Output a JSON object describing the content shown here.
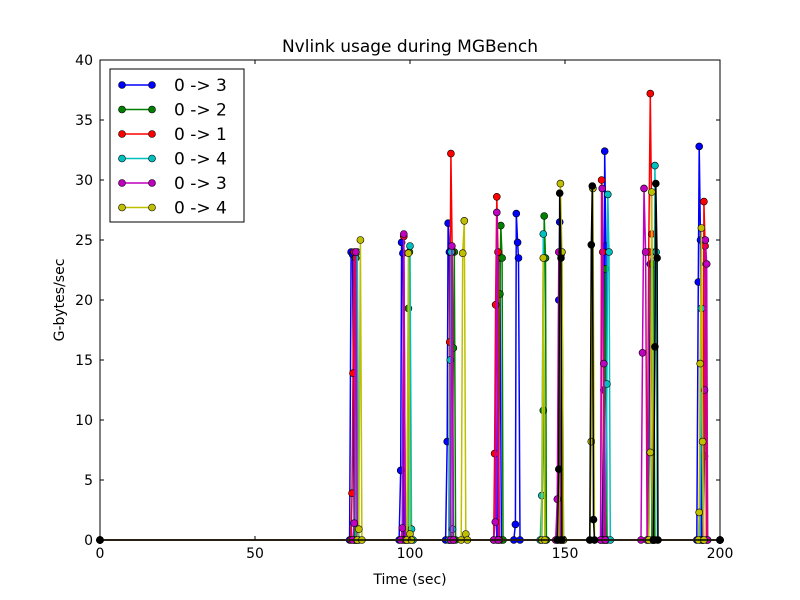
{
  "chart_data": {
    "type": "line",
    "title": "Nvlink usage during MGBench",
    "xlabel": "Time (sec)",
    "ylabel": "G-bytes/sec",
    "xlim": [
      0,
      200
    ],
    "ylim": [
      0,
      40
    ],
    "xticks": [
      0,
      50,
      100,
      150,
      200
    ],
    "yticks": [
      0,
      5,
      10,
      15,
      20,
      25,
      30,
      35,
      40
    ],
    "legend_position": "top-left",
    "series": [
      {
        "name": "0 -> 3",
        "color": "#0000ff",
        "points": [
          [
            0,
            0
          ],
          [
            80.5,
            0
          ],
          [
            81,
            24
          ],
          [
            81.5,
            23.8
          ],
          [
            82,
            0
          ],
          [
            96.5,
            0
          ],
          [
            97,
            5.8
          ],
          [
            97.3,
            24.8
          ],
          [
            97.7,
            23.9
          ],
          [
            98,
            0
          ],
          [
            111.5,
            0
          ],
          [
            112,
            8.2
          ],
          [
            112.3,
            26.4
          ],
          [
            112.7,
            24
          ],
          [
            113,
            0
          ],
          [
            128,
            0
          ],
          [
            128.5,
            24
          ],
          [
            129,
            23.5
          ],
          [
            129.5,
            0
          ],
          [
            133.5,
            0
          ],
          [
            134,
            1.3
          ],
          [
            134.3,
            27.2
          ],
          [
            134.7,
            24.8
          ],
          [
            135,
            23.5
          ],
          [
            135.5,
            0
          ],
          [
            147.5,
            0
          ],
          [
            148,
            20
          ],
          [
            148.3,
            26.5
          ],
          [
            148.7,
            23.8
          ],
          [
            149,
            0
          ],
          [
            162,
            0
          ],
          [
            162.5,
            12.5
          ],
          [
            162.8,
            32.4
          ],
          [
            163.2,
            24.5
          ],
          [
            163.5,
            0
          ],
          [
            177,
            0
          ],
          [
            177.5,
            23
          ],
          [
            178,
            24
          ],
          [
            178.5,
            0
          ],
          [
            192.5,
            0
          ],
          [
            193,
            21.5
          ],
          [
            193.3,
            32.8
          ],
          [
            193.7,
            25
          ],
          [
            194,
            0
          ],
          [
            200,
            0
          ]
        ]
      },
      {
        "name": "0 -> 2",
        "color": "#008000",
        "points": [
          [
            0,
            0
          ],
          [
            82,
            0
          ],
          [
            82.5,
            23.5
          ],
          [
            83,
            0
          ],
          [
            99,
            0
          ],
          [
            99.5,
            19.3
          ],
          [
            99.8,
            24
          ],
          [
            100.2,
            0
          ],
          [
            113.5,
            0
          ],
          [
            114,
            16
          ],
          [
            114.3,
            24
          ],
          [
            114.7,
            0
          ],
          [
            128.5,
            0
          ],
          [
            129,
            20.5
          ],
          [
            129.3,
            26.2
          ],
          [
            129.7,
            23.5
          ],
          [
            130,
            0
          ],
          [
            142.5,
            0
          ],
          [
            143,
            10.8
          ],
          [
            143.3,
            27
          ],
          [
            143.7,
            23.5
          ],
          [
            144,
            0
          ],
          [
            148.5,
            0
          ],
          [
            149,
            24
          ],
          [
            149.5,
            0
          ],
          [
            162.5,
            0
          ],
          [
            163,
            22.6
          ],
          [
            163.5,
            0
          ],
          [
            178,
            0
          ],
          [
            178.5,
            23
          ],
          [
            179,
            0
          ],
          [
            194.5,
            0
          ],
          [
            195,
            7
          ],
          [
            195.5,
            23
          ],
          [
            196,
            0
          ],
          [
            200,
            0
          ]
        ]
      },
      {
        "name": "0 -> 1",
        "color": "#ff0000",
        "points": [
          [
            0,
            0
          ],
          [
            81,
            0
          ],
          [
            81.3,
            3.9
          ],
          [
            81.6,
            13.9
          ],
          [
            82,
            24
          ],
          [
            82.5,
            0
          ],
          [
            97.5,
            0
          ],
          [
            98,
            25.3
          ],
          [
            98.5,
            0
          ],
          [
            112.5,
            0
          ],
          [
            112.8,
            16.5
          ],
          [
            113.2,
            32.2
          ],
          [
            113.6,
            24
          ],
          [
            114,
            0
          ],
          [
            127,
            0
          ],
          [
            127.3,
            7.2
          ],
          [
            127.6,
            19.6
          ],
          [
            128,
            28.6
          ],
          [
            128.4,
            24
          ],
          [
            128.8,
            0
          ],
          [
            161.5,
            0
          ],
          [
            161.8,
            30
          ],
          [
            162.2,
            24
          ],
          [
            162.6,
            0
          ],
          [
            176.5,
            0
          ],
          [
            177,
            24
          ],
          [
            177.5,
            37.2
          ],
          [
            178,
            25.5
          ],
          [
            178.5,
            0
          ],
          [
            194.5,
            0
          ],
          [
            194.8,
            28.2
          ],
          [
            195.2,
            24.5
          ],
          [
            195.6,
            0
          ],
          [
            200,
            0
          ]
        ]
      },
      {
        "name": "0 -> 4",
        "color": "#00bfbf",
        "points": [
          [
            0,
            0
          ],
          [
            82.5,
            0
          ],
          [
            83,
            24
          ],
          [
            83.5,
            0
          ],
          [
            99.5,
            0
          ],
          [
            100,
            24.5
          ],
          [
            100.5,
            0.9
          ],
          [
            101,
            0
          ],
          [
            112.5,
            0
          ],
          [
            113,
            15
          ],
          [
            113.3,
            24
          ],
          [
            113.7,
            0.9
          ],
          [
            114,
            0
          ],
          [
            142,
            0
          ],
          [
            142.5,
            3.7
          ],
          [
            143,
            25.5
          ],
          [
            143.5,
            0
          ],
          [
            163,
            0
          ],
          [
            163.5,
            13
          ],
          [
            163.8,
            28.8
          ],
          [
            164.2,
            24
          ],
          [
            164.6,
            0
          ],
          [
            178.5,
            0
          ],
          [
            179,
            31.2
          ],
          [
            179.4,
            24
          ],
          [
            179.8,
            0
          ],
          [
            193.5,
            0
          ],
          [
            194,
            19.3
          ],
          [
            194.5,
            0
          ],
          [
            200,
            0
          ]
        ]
      },
      {
        "name": "0 -> 3",
        "color": "#bf00bf",
        "points": [
          [
            0,
            0
          ],
          [
            81.5,
            0
          ],
          [
            82,
            1.4
          ],
          [
            82.5,
            24
          ],
          [
            83,
            0
          ],
          [
            97,
            0
          ],
          [
            97.5,
            1
          ],
          [
            98,
            25.5
          ],
          [
            98.5,
            0
          ],
          [
            113,
            0
          ],
          [
            113.5,
            24.5
          ],
          [
            114,
            0
          ],
          [
            127,
            0
          ],
          [
            127.5,
            1.5
          ],
          [
            128,
            27.3
          ],
          [
            128.5,
            0
          ],
          [
            147,
            0
          ],
          [
            147.5,
            3.4
          ],
          [
            148,
            24
          ],
          [
            148.5,
            0
          ],
          [
            161.5,
            0
          ],
          [
            162,
            29.3
          ],
          [
            162.5,
            14.7
          ],
          [
            163,
            0
          ],
          [
            174.5,
            0
          ],
          [
            175,
            15.6
          ],
          [
            175.5,
            29.3
          ],
          [
            176,
            24
          ],
          [
            176.5,
            0
          ],
          [
            194.5,
            0
          ],
          [
            195,
            12.5
          ],
          [
            195.3,
            25
          ],
          [
            195.7,
            23
          ],
          [
            196,
            0
          ],
          [
            200,
            0
          ]
        ]
      },
      {
        "name": "0 -> 4",
        "color": "#bfbf00",
        "points": [
          [
            0,
            0
          ],
          [
            83,
            0
          ],
          [
            83.5,
            0.9
          ],
          [
            84,
            25
          ],
          [
            84.5,
            0
          ],
          [
            99,
            0
          ],
          [
            99.5,
            23.9
          ],
          [
            100,
            0.5
          ],
          [
            100.5,
            0
          ],
          [
            116.5,
            0
          ],
          [
            117,
            23.9
          ],
          [
            117.5,
            26.6
          ],
          [
            118,
            0.5
          ],
          [
            118.5,
            0
          ],
          [
            142.5,
            0
          ],
          [
            143,
            23.5
          ],
          [
            143.5,
            0
          ],
          [
            148,
            0
          ],
          [
            148.5,
            29.7
          ],
          [
            149,
            24
          ],
          [
            149.5,
            0
          ],
          [
            158,
            0
          ],
          [
            158.5,
            8.2
          ],
          [
            159,
            29.3
          ],
          [
            159.5,
            0
          ],
          [
            177,
            0
          ],
          [
            177.5,
            7.3
          ],
          [
            178,
            29
          ],
          [
            178.5,
            0
          ],
          [
            193,
            0
          ],
          [
            193.3,
            2.3
          ],
          [
            193.6,
            14.7
          ],
          [
            194,
            26
          ],
          [
            194.4,
            8.2
          ],
          [
            194.8,
            0
          ],
          [
            200,
            0
          ]
        ]
      },
      {
        "color": "#000000",
        "points": [
          [
            0,
            0
          ],
          [
            147.5,
            0
          ],
          [
            148,
            5.9
          ],
          [
            148.3,
            28.9
          ],
          [
            148.7,
            23.5
          ],
          [
            149,
            0
          ],
          [
            158,
            0
          ],
          [
            158.5,
            24.6
          ],
          [
            158.8,
            29.5
          ],
          [
            159.2,
            1.7
          ],
          [
            159.5,
            0
          ],
          [
            178.5,
            0
          ],
          [
            179,
            16.1
          ],
          [
            179.3,
            29.7
          ],
          [
            179.7,
            23.5
          ],
          [
            180,
            0
          ],
          [
            200,
            0
          ]
        ]
      }
    ]
  }
}
